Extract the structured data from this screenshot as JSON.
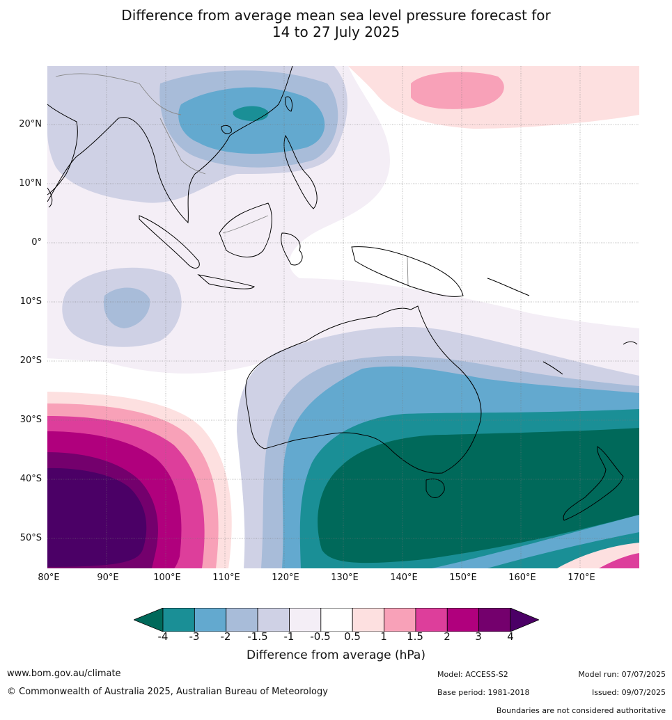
{
  "title": {
    "line1": "Difference from average mean sea level pressure forecast for",
    "line2": "14 to 27 July 2025"
  },
  "map": {
    "lat_labels": [
      "20°N",
      "10°N",
      "0°",
      "10°S",
      "20°S",
      "30°S",
      "40°S",
      "50°S"
    ],
    "lon_labels": [
      "80°E",
      "90°E",
      "100°E",
      "110°E",
      "120°E",
      "130°E",
      "140°E",
      "150°E",
      "160°E",
      "170°E"
    ],
    "extent": {
      "lon": [
        80,
        180
      ],
      "lat": [
        -55,
        30
      ]
    },
    "grid": true
  },
  "colorbar": {
    "title": "Difference from average (hPa)",
    "ticks": [
      "-4",
      "-3",
      "-2",
      "-1.5",
      "-1",
      "-0.5",
      "0.5",
      "1",
      "1.5",
      "2",
      "3",
      "4"
    ],
    "colors": [
      "#1a8f96",
      "#63a9cf",
      "#a8bcd9",
      "#cfd1e5",
      "#f4eef6",
      "#ffffff",
      "#fde0e0",
      "#f8a1b8",
      "#dd3e9b",
      "#b0007d",
      "#74006d"
    ],
    "under_color": "#00695a",
    "over_color": "#4b0066"
  },
  "footer": {
    "website": "www.bom.gov.au/climate",
    "copyright": "© Commonwealth of Australia 2025, Australian Bureau of Meteorology",
    "model": "Model: ACCESS-S2",
    "base_period": "Base period: 1981-2018",
    "model_run": "Model run: 07/07/2025",
    "issued": "Issued: 09/07/2025",
    "boundaries_note": "Boundaries are not considered authoritative"
  }
}
